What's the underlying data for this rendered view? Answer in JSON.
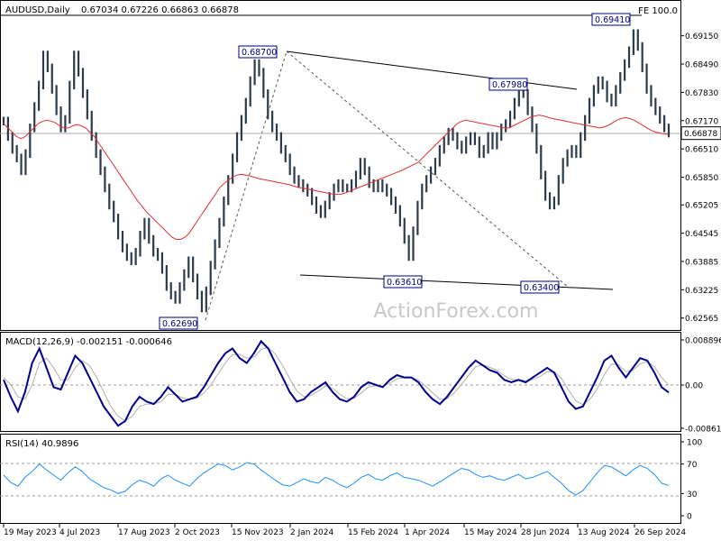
{
  "chart_data": [
    {
      "type": "line",
      "panel": "price",
      "title": "AUDUSD,Daily",
      "ohlc_readout": "0.67034 0.67226 0.66863 0.66878",
      "indicator_label": "FE 100.0",
      "watermark": "ActionForex.com",
      "ylim": [
        0.6237,
        0.699
      ],
      "y_ticks": [
        "0.69150",
        "0.68490",
        "0.67830",
        "0.67170",
        "0.66510",
        "0.65850",
        "0.65205",
        "0.64545",
        "0.63885",
        "0.63225",
        "0.62565"
      ],
      "current_price": 0.66878,
      "current_price_label": "0.66878",
      "x_labels": [
        "19 May 2023",
        "4 Jul 2023",
        "17 Aug 2023",
        "2 Oct 2023",
        "15 Nov 2023",
        "2 Jan 2024",
        "15 Feb 2024",
        "1 Apr 2024",
        "15 May 2024",
        "28 Jun 2024",
        "13 Aug 2024",
        "26 Sep 2024"
      ],
      "series": [
        {
          "role": "price-close",
          "values": [
            0.6716,
            0.668,
            0.665,
            0.663,
            0.66,
            0.664,
            0.67,
            0.675,
            0.68,
            0.687,
            0.684,
            0.679,
            0.674,
            0.67,
            0.672,
            0.68,
            0.687,
            0.683,
            0.678,
            0.673,
            0.668,
            0.664,
            0.66,
            0.656,
            0.652,
            0.649,
            0.645,
            0.642,
            0.64,
            0.639,
            0.641,
            0.645,
            0.648,
            0.644,
            0.641,
            0.64,
            0.637,
            0.633,
            0.631,
            0.63,
            0.633,
            0.636,
            0.639,
            0.635,
            0.631,
            0.628,
            0.632,
            0.638,
            0.643,
            0.648,
            0.653,
            0.658,
            0.663,
            0.668,
            0.672,
            0.676,
            0.681,
            0.685,
            0.683,
            0.678,
            0.673,
            0.67,
            0.668,
            0.665,
            0.663,
            0.66,
            0.658,
            0.657,
            0.656,
            0.655,
            0.653,
            0.651,
            0.65,
            0.652,
            0.654,
            0.656,
            0.657,
            0.656,
            0.656,
            0.657,
            0.659,
            0.662,
            0.66,
            0.657,
            0.656,
            0.657,
            0.656,
            0.655,
            0.653,
            0.651,
            0.648,
            0.644,
            0.64,
            0.646,
            0.652,
            0.656,
            0.658,
            0.66,
            0.662,
            0.665,
            0.667,
            0.669,
            0.668,
            0.666,
            0.665,
            0.667,
            0.668,
            0.667,
            0.664,
            0.665,
            0.668,
            0.666,
            0.668,
            0.67,
            0.671,
            0.673,
            0.676,
            0.679,
            0.678,
            0.674,
            0.67,
            0.665,
            0.659,
            0.654,
            0.652,
            0.653,
            0.658,
            0.662,
            0.664,
            0.665,
            0.664,
            0.668,
            0.672,
            0.676,
            0.679,
            0.681,
            0.68,
            0.677,
            0.676,
            0.679,
            0.682,
            0.685,
            0.688,
            0.692,
            0.689,
            0.684,
            0.679,
            0.676,
            0.674,
            0.672,
            0.67,
            0.6688
          ]
        },
        {
          "role": "moving-average",
          "values": [
            0.671,
            0.67,
            0.669,
            0.668,
            0.6675,
            0.668,
            0.669,
            0.67,
            0.671,
            0.6715,
            0.6718,
            0.6716,
            0.6712,
            0.6705,
            0.67,
            0.67,
            0.6705,
            0.6708,
            0.6705,
            0.67,
            0.669,
            0.668,
            0.6665,
            0.665,
            0.6635,
            0.662,
            0.6605,
            0.659,
            0.6575,
            0.656,
            0.6545,
            0.653,
            0.6518,
            0.6505,
            0.6495,
            0.6485,
            0.6475,
            0.6465,
            0.6455,
            0.6445,
            0.644,
            0.644,
            0.6445,
            0.6455,
            0.647,
            0.6485,
            0.65,
            0.6515,
            0.653,
            0.6545,
            0.656,
            0.657,
            0.6578,
            0.6585,
            0.659,
            0.6592,
            0.659,
            0.6588,
            0.6585,
            0.6582,
            0.658,
            0.6578,
            0.6576,
            0.6574,
            0.6572,
            0.657,
            0.6568,
            0.6565,
            0.6562,
            0.656,
            0.6558,
            0.6556,
            0.6554,
            0.6552,
            0.655,
            0.6548,
            0.6546,
            0.6545,
            0.6545,
            0.6548,
            0.6552,
            0.6556,
            0.656,
            0.6564,
            0.6568,
            0.6572,
            0.6576,
            0.658,
            0.6584,
            0.6588,
            0.6592,
            0.6596,
            0.66,
            0.6605,
            0.661,
            0.6615,
            0.662,
            0.663,
            0.664,
            0.665,
            0.666,
            0.667,
            0.668,
            0.669,
            0.67,
            0.671,
            0.6715,
            0.6718,
            0.6716,
            0.6714,
            0.6712,
            0.671,
            0.6708,
            0.6706,
            0.6704,
            0.6702,
            0.67,
            0.67,
            0.6705,
            0.671,
            0.6715,
            0.672,
            0.6725,
            0.6728,
            0.673,
            0.6728,
            0.6725,
            0.6722,
            0.672,
            0.6718,
            0.6716,
            0.6714,
            0.6712,
            0.671,
            0.6708,
            0.6706,
            0.6704,
            0.6702,
            0.67,
            0.6702,
            0.6706,
            0.6712,
            0.6718,
            0.6722,
            0.6724,
            0.6722,
            0.6718,
            0.6712,
            0.6706,
            0.67,
            0.6694,
            0.669,
            0.6688,
            0.6686,
            0.6685
          ]
        }
      ],
      "annotations": [
        {
          "label": "0.68700",
          "value": 0.687
        },
        {
          "label": "0.67980",
          "value": 0.6798
        },
        {
          "label": "0.69410",
          "value": 0.6941
        },
        {
          "label": "0.63610",
          "value": 0.6361
        },
        {
          "label": "0.63400",
          "value": 0.634
        },
        {
          "label": "0.62690",
          "value": 0.6269
        }
      ]
    },
    {
      "type": "line",
      "panel": "macd",
      "title": "MACD(12,26,9) -0.002151 -0.000646",
      "y_ticks": [
        "0.008896",
        "0.00",
        "-0.008612"
      ],
      "ylim": [
        -0.0097,
        0.0097
      ],
      "series": [
        {
          "role": "macd",
          "values": [
            0.0005,
            -0.003,
            -0.006,
            -0.002,
            0.004,
            0.007,
            0.003,
            -0.001,
            -0.0015,
            0.002,
            0.0055,
            0.004,
            0.001,
            -0.002,
            -0.005,
            -0.007,
            -0.009,
            -0.008,
            -0.005,
            -0.003,
            -0.004,
            -0.0045,
            -0.003,
            -0.001,
            -0.0025,
            -0.004,
            -0.0035,
            -0.003,
            -0.001,
            0.0015,
            0.004,
            0.006,
            0.007,
            0.005,
            0.004,
            0.006,
            0.0085,
            0.007,
            0.004,
            0.001,
            -0.002,
            -0.004,
            -0.0035,
            -0.002,
            -0.001,
            0.0,
            -0.002,
            -0.0035,
            -0.004,
            -0.003,
            -0.001,
            0.0,
            -0.0005,
            -0.001,
            0.0005,
            0.0015,
            0.001,
            0.001,
            0.0,
            -0.002,
            -0.0035,
            -0.0045,
            -0.003,
            -0.001,
            0.001,
            0.003,
            0.0045,
            0.0035,
            0.0025,
            0.002,
            0.0005,
            0.0,
            0.0005,
            0.0,
            0.001,
            0.002,
            0.003,
            0.002,
            -0.001,
            -0.004,
            -0.0055,
            -0.005,
            -0.002,
            0.001,
            0.0045,
            0.0055,
            0.003,
            0.001,
            0.003,
            0.005,
            0.0045,
            0.002,
            -0.001,
            -0.0021
          ]
        },
        {
          "role": "signal",
          "values": [
            0.001,
            -0.0005,
            -0.003,
            -0.0035,
            -0.0005,
            0.004,
            0.005,
            0.003,
            0.0005,
            0.0005,
            0.003,
            0.0045,
            0.0035,
            0.001,
            -0.002,
            -0.005,
            -0.007,
            -0.008,
            -0.007,
            -0.005,
            -0.0045,
            -0.0045,
            -0.004,
            -0.0025,
            -0.0025,
            -0.0032,
            -0.0035,
            -0.0033,
            -0.0022,
            -0.0005,
            0.0018,
            0.004,
            0.0057,
            0.0058,
            0.005,
            0.0052,
            0.0068,
            0.0072,
            0.0058,
            0.0035,
            0.0008,
            -0.0018,
            -0.003,
            -0.0027,
            -0.0018,
            -0.0008,
            -0.0012,
            -0.0025,
            -0.0034,
            -0.0033,
            -0.0022,
            -0.001,
            -0.0007,
            -0.0008,
            -0.0002,
            0.0007,
            0.001,
            0.001,
            0.0005,
            -0.0008,
            -0.0022,
            -0.0035,
            -0.0034,
            -0.0022,
            -0.0005,
            0.0014,
            0.0032,
            0.0036,
            0.0031,
            0.0025,
            0.0014,
            0.0006,
            0.0005,
            0.0003,
            0.0006,
            0.0012,
            0.0022,
            0.0022,
            0.0008,
            -0.0016,
            -0.0038,
            -0.0046,
            -0.0035,
            -0.0014,
            0.0016,
            0.0038,
            0.0036,
            0.0022,
            0.0025,
            0.0038,
            0.0043,
            0.0032,
            0.001,
            -0.0006
          ]
        }
      ]
    },
    {
      "type": "line",
      "panel": "rsi",
      "title": "RSI(14) 40.9896",
      "y_ticks": [
        "100",
        "70",
        "30",
        "0"
      ],
      "ylim": [
        0,
        100
      ],
      "levels": [
        70,
        30
      ],
      "series": [
        {
          "role": "rsi",
          "values": [
            55,
            45,
            40,
            52,
            60,
            70,
            62,
            55,
            48,
            58,
            66,
            60,
            50,
            44,
            38,
            35,
            30,
            33,
            42,
            48,
            45,
            40,
            50,
            55,
            48,
            44,
            40,
            50,
            58,
            64,
            70,
            68,
            62,
            66,
            72,
            70,
            62,
            55,
            48,
            42,
            40,
            45,
            50,
            46,
            44,
            52,
            48,
            42,
            38,
            44,
            52,
            56,
            50,
            48,
            54,
            58,
            52,
            50,
            48,
            44,
            40,
            46,
            52,
            58,
            64,
            62,
            56,
            52,
            54,
            50,
            48,
            52,
            56,
            50,
            52,
            56,
            60,
            52,
            44,
            34,
            28,
            34,
            46,
            58,
            68,
            66,
            60,
            54,
            62,
            68,
            64,
            56,
            44,
            41
          ]
        }
      ]
    }
  ]
}
